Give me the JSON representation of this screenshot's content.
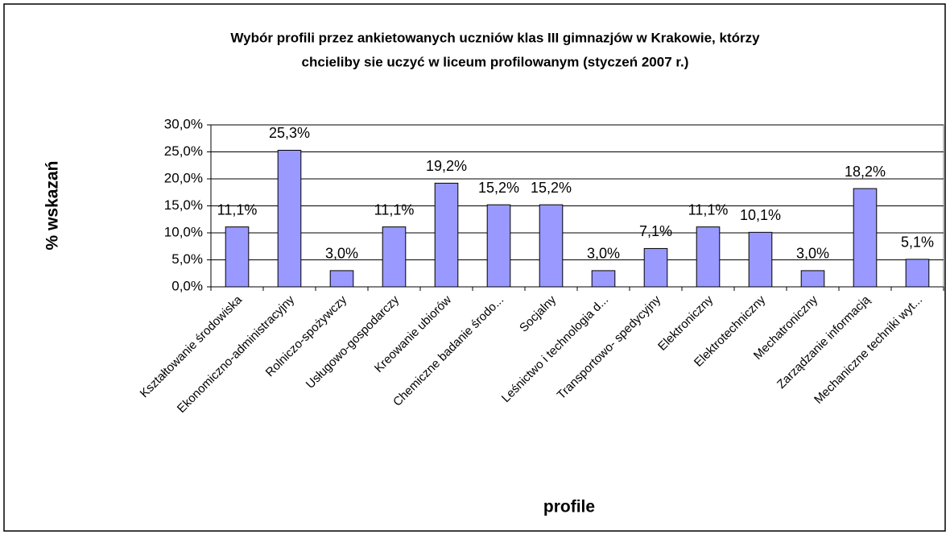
{
  "chart_data": {
    "type": "bar",
    "title": [
      "Wybór profili przez ankietowanych uczniów klas III gimnazjów w Krakowie, którzy",
      "chcieliby sie uczyć w liceum profilowanym (styczeń 2007 r.)"
    ],
    "x_label": "profile",
    "y_label": "% wskazań",
    "categories": [
      "Kształtowanie środowiska",
      "Ekonomiczno-administracyjny",
      "Rolniczo-spożywczy",
      "Usługowo-gospodarczy",
      "Kreowanie ubiorów",
      "Chemiczne badanie środo...",
      "Socjalny",
      "Leśnictwo i technologia d...",
      "Transportowo- spedycyjny",
      "Elektroniczny",
      "Elektrotechniczny",
      "Mechatroniczny",
      "Zarządzanie informacją",
      "Mechaniczne techniki wyt..."
    ],
    "values": [
      11.1,
      25.3,
      3.0,
      11.1,
      19.2,
      15.2,
      15.2,
      3.0,
      7.1,
      11.1,
      10.1,
      3.0,
      18.2,
      5.1
    ],
    "value_labels": [
      "11,1%",
      "25,3%",
      "3,0%",
      "11,1%",
      "19,2%",
      "15,2%",
      "15,2%",
      "3,0%",
      "7,1%",
      "11,1%",
      "10,1%",
      "3,0%",
      "18,2%",
      "5,1%"
    ],
    "color": "#9999ff",
    "ylim": [
      0,
      30
    ],
    "yticks": [
      {
        "value": 0,
        "label": "0,0%"
      },
      {
        "value": 5,
        "label": "5,0%"
      },
      {
        "value": 10,
        "label": "10,0%"
      },
      {
        "value": 15,
        "label": "15,0%"
      },
      {
        "value": 20,
        "label": "20,0%"
      },
      {
        "value": 25,
        "label": "25,0%"
      },
      {
        "value": 30,
        "label": "30,0%"
      }
    ],
    "grid": true
  }
}
